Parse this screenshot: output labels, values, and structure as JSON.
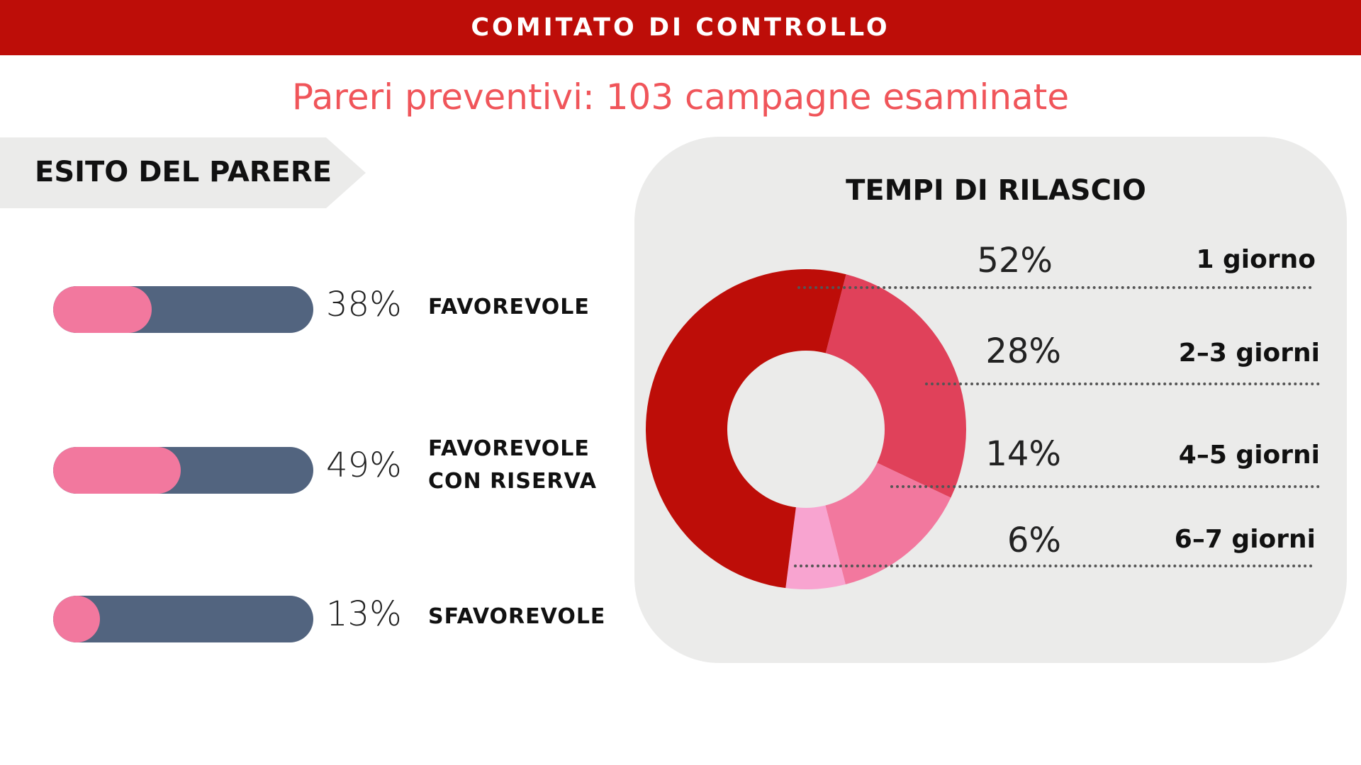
{
  "header": {
    "title": "COMITATO DI CONTROLLO"
  },
  "subtitle": "Pareri preventivi: 103 campagne esaminate",
  "colors": {
    "header_bg": "#bd0d08",
    "subtitle": "#f0555a",
    "bar_track": "#52647f",
    "bar_fill": "#f2789e",
    "panel_bg": "#ebebea"
  },
  "chart_data": [
    {
      "type": "bar",
      "title": "ESITO DEL PARERE",
      "categories": [
        "FAVOREVOLE",
        "FAVOREVOLE CON RISERVA",
        "SFAVOREVOLE"
      ],
      "category_lines": [
        [
          "FAVOREVOLE"
        ],
        [
          "FAVOREVOLE",
          "CON RISERVA"
        ],
        [
          "SFAVOREVOLE"
        ]
      ],
      "values": [
        38,
        49,
        13
      ],
      "value_labels": [
        "38%",
        "49%",
        "13%"
      ],
      "unit": "%",
      "ylim": [
        0,
        100
      ]
    },
    {
      "type": "pie",
      "title": "TEMPI DI RILASCIO",
      "categories": [
        "1 giorno",
        "2–3 giorni",
        "4–5 giorni",
        "6–7 giorni"
      ],
      "values": [
        52,
        28,
        14,
        6
      ],
      "value_labels": [
        "52%",
        "28%",
        "14%",
        "6%"
      ],
      "colors": [
        "#bd0d08",
        "#e0415a",
        "#f2789e",
        "#f8a4d0"
      ],
      "unit": "%"
    }
  ]
}
